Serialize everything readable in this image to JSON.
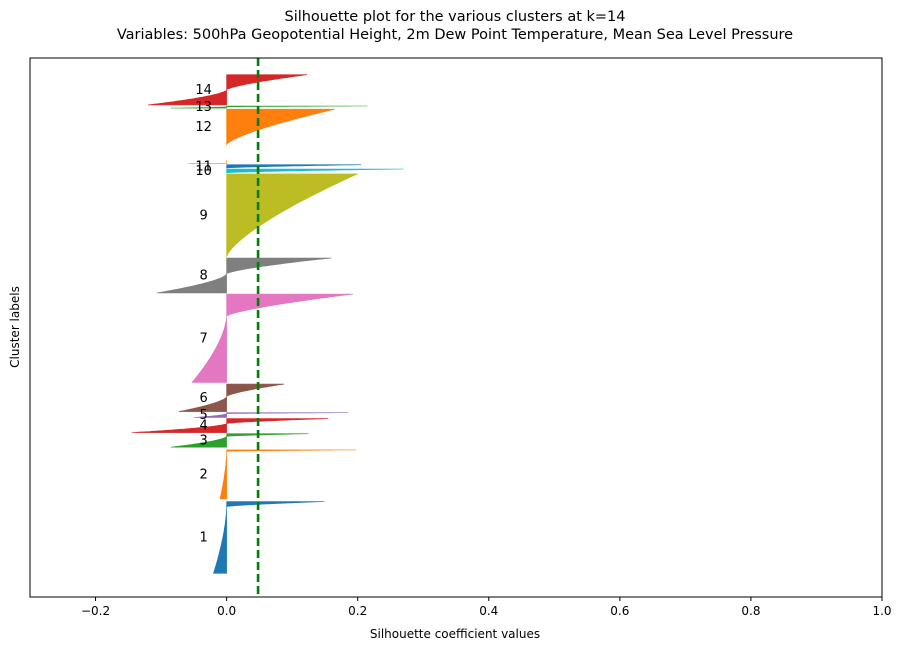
{
  "chart_data": {
    "type": "silhouette",
    "title": "Silhouette plot for the various clusters at k=14",
    "subtitle": "Variables: 500hPa Geopotential Height, 2m Dew Point Temperature, Mean Sea Level Pressure",
    "xlabel": "Silhouette coefficient values",
    "ylabel": "Cluster labels",
    "xlim": [
      -0.3,
      1.0
    ],
    "ylim": [
      0,
      1000
    ],
    "xticks": [
      -0.2,
      0.0,
      0.2,
      0.4,
      0.6,
      0.8,
      1.0
    ],
    "xtick_labels": [
      "−0.2",
      "0.0",
      "0.2",
      "0.4",
      "0.6",
      "0.8",
      "1.0"
    ],
    "yticks": [],
    "grid": false,
    "average_silhouette": 0.048,
    "average_line_color": "#008000",
    "clusters": [
      {
        "label": "1",
        "color": "#1f77b4",
        "y_start": 44,
        "y_end": 177,
        "max": 0.149,
        "min": -0.02,
        "neg_frac": 0.07
      },
      {
        "label": "2",
        "color": "#ff7f0e",
        "y_start": 182,
        "y_end": 273,
        "max": 0.198,
        "min": -0.01,
        "neg_frac": 0.03
      },
      {
        "label": "3",
        "color": "#2ca02c",
        "y_start": 278,
        "y_end": 303,
        "max": 0.125,
        "min": -0.085,
        "neg_frac": 0.2
      },
      {
        "label": "4",
        "color": "#d62728",
        "y_start": 305,
        "y_end": 331,
        "max": 0.155,
        "min": -0.145,
        "neg_frac": 0.35
      },
      {
        "label": "5",
        "color": "#9467bd",
        "y_start": 333,
        "y_end": 342,
        "max": 0.185,
        "min": -0.05,
        "neg_frac": 0.2
      },
      {
        "label": "6",
        "color": "#8c564b",
        "y_start": 344,
        "y_end": 395,
        "max": 0.088,
        "min": -0.073,
        "neg_frac": 0.45
      },
      {
        "label": "7",
        "color": "#e377c2",
        "y_start": 398,
        "y_end": 562,
        "max": 0.193,
        "min": -0.053,
        "neg_frac": 0.25
      },
      {
        "label": "8",
        "color": "#7f7f7f",
        "y_start": 564,
        "y_end": 629,
        "max": 0.16,
        "min": -0.107,
        "neg_frac": 0.45
      },
      {
        "label": "9",
        "color": "#bcbd22",
        "y_start": 631,
        "y_end": 785,
        "max": 0.2,
        "min": 0.0,
        "neg_frac": 0.0
      },
      {
        "label": "10",
        "color": "#17becf",
        "y_start": 787,
        "y_end": 794,
        "max": 0.27,
        "min": 0.0,
        "neg_frac": 0.0
      },
      {
        "label": "11",
        "color": "#1f77b4",
        "y_start": 796,
        "y_end": 802,
        "max": 0.205,
        "min": 0.0,
        "neg_frac": 0.0
      },
      {
        "label": "11",
        "color": "#ff7f0e",
        "y_start": 804,
        "y_end": 811,
        "max": 0.0,
        "min": -0.058,
        "neg_frac": 1.0
      },
      {
        "label": "12",
        "color": "#ff7f0e",
        "y_start": 839,
        "y_end": 905,
        "max": 0.165,
        "min": 0.0,
        "neg_frac": 0.0
      },
      {
        "label": "13",
        "color": "#2ca02c",
        "y_start": 907,
        "y_end": 911,
        "max": 0.215,
        "min": -0.085,
        "neg_frac": 0.4
      },
      {
        "label": "14",
        "color": "#d62728",
        "y_start": 913,
        "y_end": 969,
        "max": 0.123,
        "min": -0.12,
        "neg_frac": 0.5
      }
    ]
  }
}
